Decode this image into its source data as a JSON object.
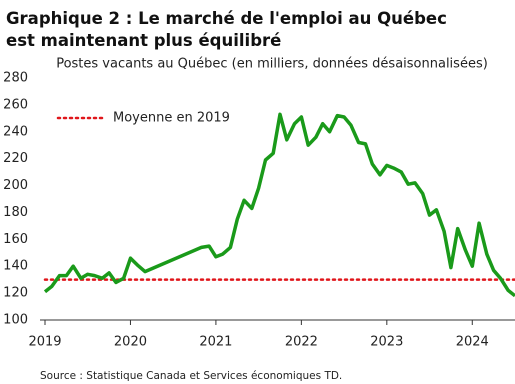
{
  "chart_data": {
    "type": "line",
    "title": "Graphique 2 : Le marché de l'emploi au Québec est maintenant plus équilibré",
    "subtitle": "Postes vacants au Québec (en milliers, données désaisonnalisées)",
    "source": "Source : Statistique Canada et Services économiques TD.",
    "x": [
      2019.0,
      2019.08,
      2019.17,
      2019.25,
      2019.33,
      2019.42,
      2019.5,
      2019.58,
      2019.67,
      2019.75,
      2019.83,
      2019.92,
      2020.0,
      2020.08,
      2020.17,
      2020.83,
      2020.92,
      2021.0,
      2021.08,
      2021.17,
      2021.25,
      2021.33,
      2021.42,
      2021.5,
      2021.58,
      2021.67,
      2021.75,
      2021.83,
      2021.92,
      2022.0,
      2022.08,
      2022.17,
      2022.25,
      2022.33,
      2022.42,
      2022.5,
      2022.58,
      2022.67,
      2022.75,
      2022.83,
      2022.92,
      2023.0,
      2023.08,
      2023.17,
      2023.25,
      2023.33,
      2023.42,
      2023.5,
      2023.58,
      2023.67,
      2023.75,
      2023.83,
      2023.92,
      2024.0,
      2024.08,
      2024.17,
      2024.25,
      2024.33,
      2024.42,
      2024.5
    ],
    "values": [
      121,
      125,
      133,
      133,
      140,
      131,
      134,
      133,
      131,
      135,
      128,
      131,
      146,
      141,
      136,
      154,
      155,
      147,
      149,
      154,
      175,
      189,
      183,
      198,
      219,
      224,
      253,
      234,
      246,
      251,
      230,
      236,
      246,
      240,
      252,
      251,
      245,
      232,
      231,
      216,
      208,
      215,
      213,
      210,
      201,
      202,
      194,
      178,
      182,
      166,
      139,
      168,
      152,
      140,
      172,
      149,
      137,
      131,
      122,
      118
    ],
    "color": "#1a9a1a",
    "reference_line": {
      "value": 130,
      "label": "Moyenne en 2019",
      "color": "#e0161b"
    },
    "xlim": [
      2019,
      2024.5
    ],
    "xticks": [
      2019,
      2020,
      2021,
      2022,
      2023,
      2024
    ],
    "ylim": [
      100,
      280
    ],
    "yticks": [
      100,
      120,
      140,
      160,
      180,
      200,
      220,
      240,
      260,
      280
    ]
  }
}
